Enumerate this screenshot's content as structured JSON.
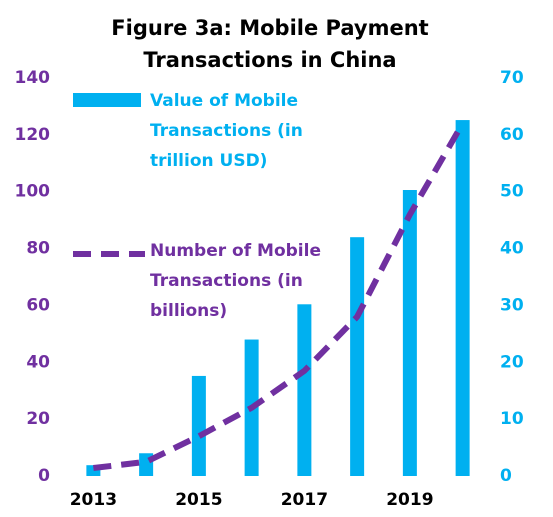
{
  "chart_data": {
    "type": "bar-line",
    "title": "Figure 3a: Mobile Payment Transactions in China",
    "categories": [
      "2013",
      null,
      "2015",
      null,
      "2017",
      null,
      "2019",
      null
    ],
    "series": [
      {
        "name": "Value of Mobile Transactions (in trillion USD)",
        "type": "bar",
        "color": "#00b0f0",
        "axis": "y2",
        "values": [
          1.9,
          4,
          17.6,
          24,
          30.2,
          42,
          50.3,
          62.6
        ]
      },
      {
        "name": "Number of Mobile Transactions (in billions)",
        "type": "line",
        "color": "#7030a0",
        "dashed": true,
        "values": [
          2.8,
          5,
          14,
          24,
          37,
          56,
          92,
          124
        ]
      }
    ],
    "ylim": [
      0,
      140
    ],
    "yticks": [
      0,
      20,
      40,
      60,
      80,
      100,
      120,
      140
    ],
    "ycolor": "#7030a0",
    "y2lim": [
      0,
      70
    ],
    "y2ticks": [
      0,
      10,
      20,
      30,
      40,
      50,
      60,
      70
    ],
    "y2color": "#00b0f0",
    "grid": false
  }
}
